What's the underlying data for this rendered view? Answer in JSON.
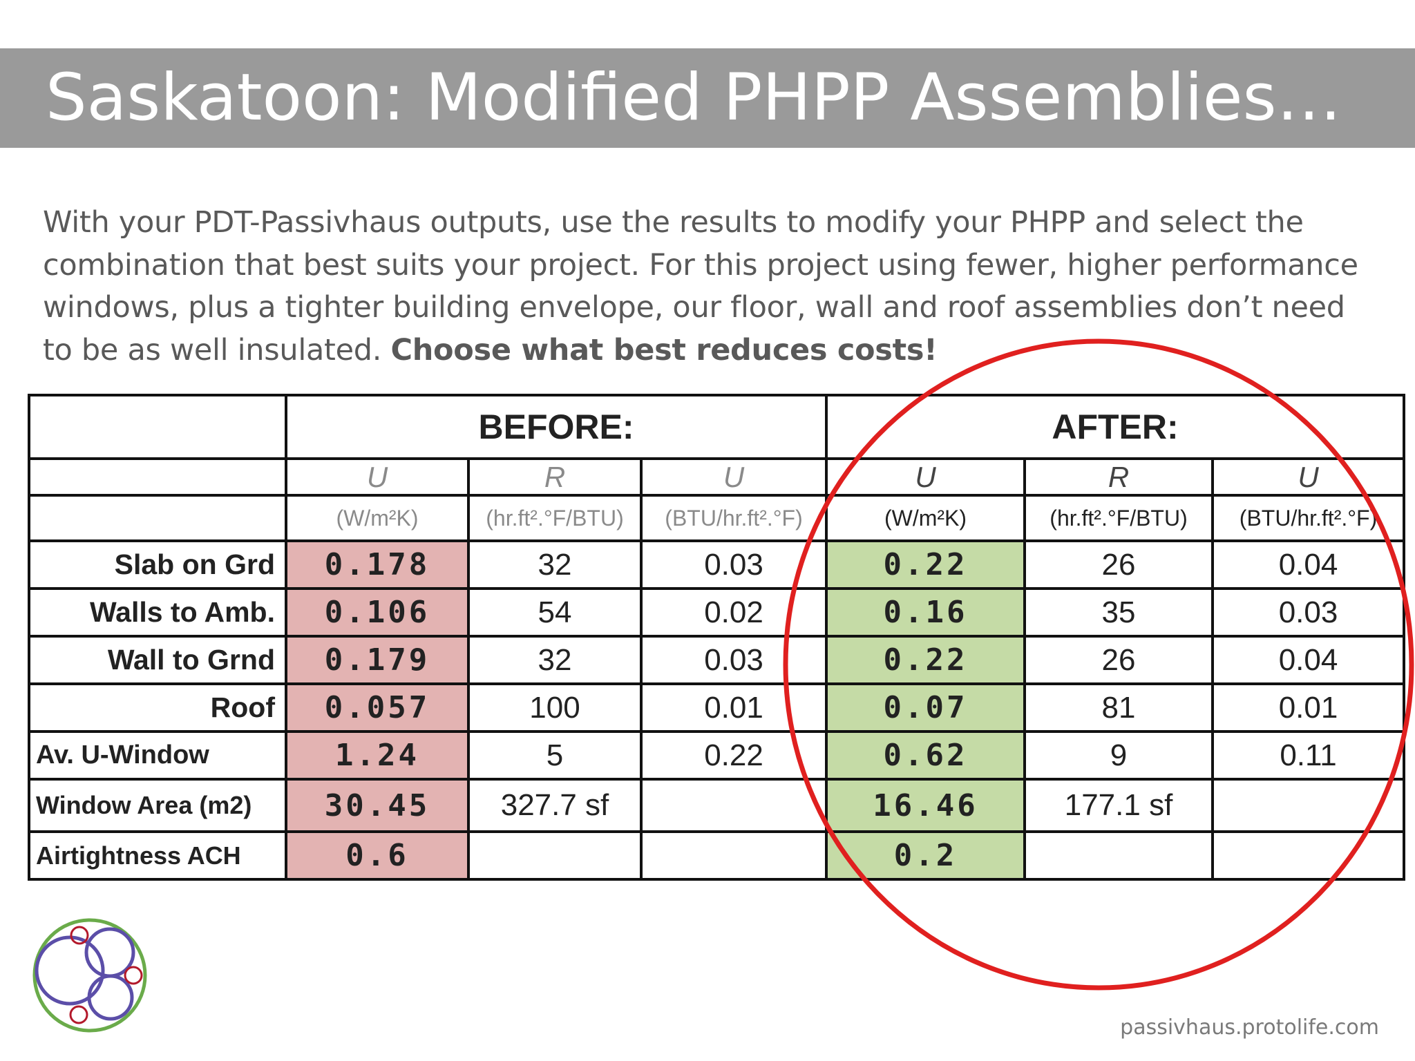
{
  "slide": {
    "title": "Saskatoon: Modified PHPP Assemblies…",
    "intro_text": "With your PDT-Passivhaus outputs, use the results to modify your PHPP and select the combination that best suits your project. For this project using fewer, higher performance windows, plus a tighter building envelope, our floor, wall and roof assemblies don’t need to be as well insulated. ",
    "intro_emphasis": "Choose what best reduces costs!",
    "footer_url": "passivhaus.protolife.com"
  },
  "table": {
    "group_headers": {
      "before": "BEFORE:",
      "after": "AFTER:"
    },
    "symbols": {
      "u": "U",
      "r": "R"
    },
    "units": {
      "si": "(W/m²K)",
      "r_imperial": "(hr.ft².°F/BTU)",
      "u_imperial": "(BTU/hr.ft².°F)"
    },
    "rows": [
      {
        "label": "Slab on Grd",
        "before_u": "0.178",
        "before_r": "32",
        "before_u_imp": "0.03",
        "after_u": "0.22",
        "after_r": "26",
        "after_u_imp": "0.04"
      },
      {
        "label": "Walls to Amb.",
        "before_u": "0.106",
        "before_r": "54",
        "before_u_imp": "0.02",
        "after_u": "0.16",
        "after_r": "35",
        "after_u_imp": "0.03"
      },
      {
        "label": "Wall to Grnd",
        "before_u": "0.179",
        "before_r": "32",
        "before_u_imp": "0.03",
        "after_u": "0.22",
        "after_r": "26",
        "after_u_imp": "0.04"
      },
      {
        "label": "Roof",
        "before_u": "0.057",
        "before_r": "100",
        "before_u_imp": "0.01",
        "after_u": "0.07",
        "after_r": "81",
        "after_u_imp": "0.01"
      },
      {
        "label": "Av. U-Window",
        "before_u": "1.24",
        "before_r": "5",
        "before_u_imp": "0.22",
        "after_u": "0.62",
        "after_r": "9",
        "after_u_imp": "0.11"
      },
      {
        "label": "Window Area (m2)",
        "before_u": "30.45",
        "before_r": "327.7 sf",
        "before_u_imp": "",
        "after_u": "16.46",
        "after_r": "177.1 sf",
        "after_u_imp": ""
      },
      {
        "label": "Airtightness ACH",
        "before_u": "0.6",
        "before_r": "",
        "before_u_imp": "",
        "after_u": "0.2",
        "after_r": "",
        "after_u_imp": ""
      }
    ]
  },
  "colors": {
    "title_bar": "#9a9a9a",
    "before_highlight": "#e3b3b2",
    "after_highlight": "#c5dba6",
    "annotation_circle": "#e0201f",
    "logo_outer": "#6aab4a",
    "logo_inner": "#5b4ea8",
    "logo_small": "#b3192b"
  },
  "icons": {
    "logo": "protolife-circles-logo"
  }
}
